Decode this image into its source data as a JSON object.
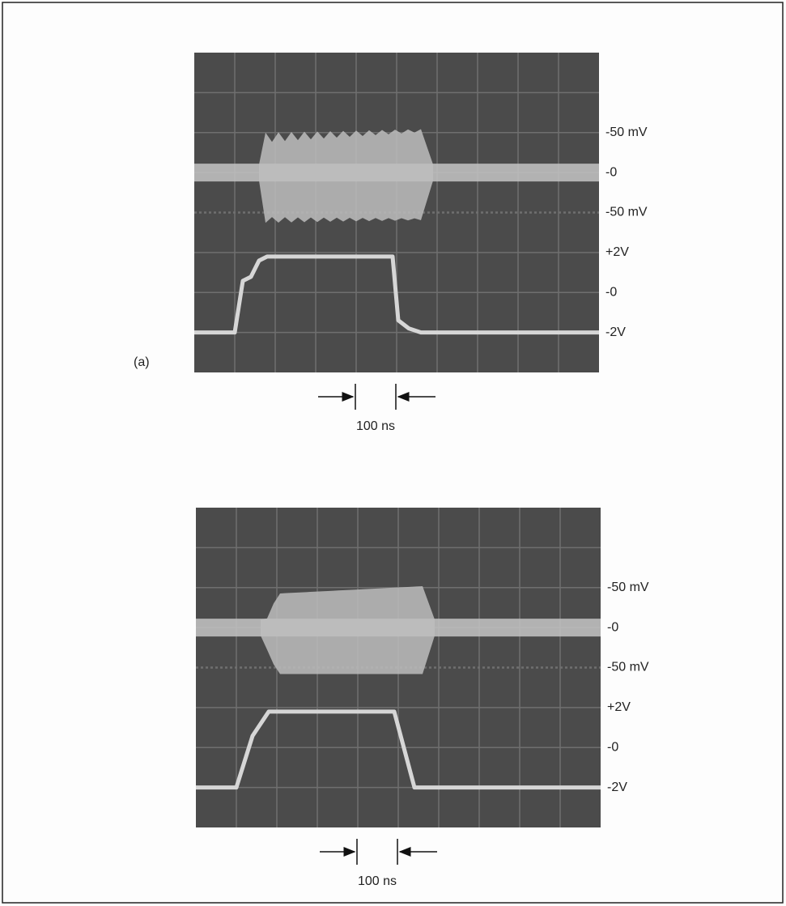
{
  "panels": [
    {
      "label": "(a)",
      "scale_labels": [
        "-50 mV",
        "-0",
        "-50 mV",
        "+2V",
        "-0",
        "-2V"
      ],
      "time_label": "100 ns"
    },
    {
      "scale_labels": [
        "-50 mV",
        "-0",
        "-50 mV",
        "+2V",
        "-0",
        "-2V"
      ],
      "time_label": "100 ns"
    }
  ]
}
